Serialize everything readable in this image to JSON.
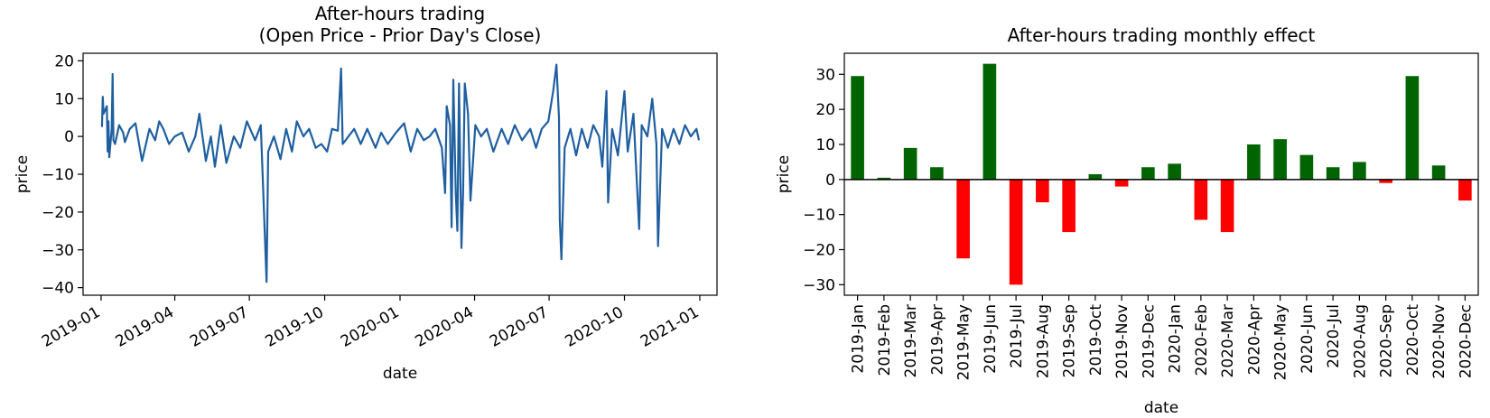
{
  "chart_data": [
    {
      "type": "line",
      "title": "After-hours trading",
      "subtitle": "(Open Price - Prior Day's Close)",
      "xlabel": "date",
      "ylabel": "price",
      "x_ticks": [
        "2019-01",
        "2019-04",
        "2019-07",
        "2019-10",
        "2020-01",
        "2020-04",
        "2020-07",
        "2020-10",
        "2021-01"
      ],
      "y_ticks": [
        20,
        10,
        0,
        -10,
        -20,
        -30,
        -40
      ],
      "xlim": [
        "2018-12-10",
        "2021-01-22"
      ],
      "ylim": [
        -42,
        22
      ],
      "line_color": "#1f5fa0",
      "series": [
        {
          "points": [
            [
              "2019-01-02",
              2.5
            ],
            [
              "2019-01-03",
              10.5
            ],
            [
              "2019-01-04",
              6
            ],
            [
              "2019-01-08",
              8
            ],
            [
              "2019-01-09",
              -4
            ],
            [
              "2019-01-10",
              4
            ],
            [
              "2019-01-11",
              -5.5
            ],
            [
              "2019-01-14",
              2
            ],
            [
              "2019-01-15",
              16.5
            ],
            [
              "2019-01-16",
              -1
            ],
            [
              "2019-01-18",
              -2
            ],
            [
              "2019-01-23",
              3
            ],
            [
              "2019-01-28",
              1
            ],
            [
              "2019-01-30",
              -1.5
            ],
            [
              "2019-02-05",
              2
            ],
            [
              "2019-02-12",
              3.5
            ],
            [
              "2019-02-20",
              -6.5
            ],
            [
              "2019-03-01",
              2
            ],
            [
              "2019-03-08",
              -1
            ],
            [
              "2019-03-13",
              4
            ],
            [
              "2019-03-18",
              2
            ],
            [
              "2019-03-25",
              -2
            ],
            [
              "2019-04-01",
              0
            ],
            [
              "2019-04-10",
              1
            ],
            [
              "2019-04-18",
              -4
            ],
            [
              "2019-04-26",
              0
            ],
            [
              "2019-05-01",
              6
            ],
            [
              "2019-05-09",
              -6.5
            ],
            [
              "2019-05-15",
              0
            ],
            [
              "2019-05-20",
              -8
            ],
            [
              "2019-05-27",
              3
            ],
            [
              "2019-06-03",
              -7
            ],
            [
              "2019-06-12",
              0
            ],
            [
              "2019-06-20",
              -3
            ],
            [
              "2019-06-28",
              4
            ],
            [
              "2019-07-08",
              -1
            ],
            [
              "2019-07-15",
              3
            ],
            [
              "2019-07-22",
              -38.5
            ],
            [
              "2019-07-24",
              -4
            ],
            [
              "2019-07-31",
              0
            ],
            [
              "2019-08-08",
              -6
            ],
            [
              "2019-08-15",
              2
            ],
            [
              "2019-08-22",
              -4
            ],
            [
              "2019-08-28",
              4
            ],
            [
              "2019-09-05",
              0
            ],
            [
              "2019-09-12",
              2
            ],
            [
              "2019-09-20",
              -3
            ],
            [
              "2019-09-27",
              -2
            ],
            [
              "2019-10-04",
              -4
            ],
            [
              "2019-10-10",
              2
            ],
            [
              "2019-10-17",
              1.5
            ],
            [
              "2019-10-21",
              18
            ],
            [
              "2019-10-23",
              -2
            ],
            [
              "2019-10-30",
              0
            ],
            [
              "2019-11-06",
              2
            ],
            [
              "2019-11-14",
              -2
            ],
            [
              "2019-11-22",
              2
            ],
            [
              "2019-12-02",
              -3
            ],
            [
              "2019-12-09",
              1
            ],
            [
              "2019-12-17",
              -2
            ],
            [
              "2019-12-27",
              1
            ],
            [
              "2020-01-06",
              3.5
            ],
            [
              "2020-01-14",
              -4
            ],
            [
              "2020-01-22",
              2
            ],
            [
              "2020-01-30",
              -1
            ],
            [
              "2020-02-06",
              0
            ],
            [
              "2020-02-13",
              2
            ],
            [
              "2020-02-21",
              -3
            ],
            [
              "2020-02-25",
              -15
            ],
            [
              "2020-02-27",
              8
            ],
            [
              "2020-03-02",
              3
            ],
            [
              "2020-03-04",
              -24
            ],
            [
              "2020-03-06",
              15
            ],
            [
              "2020-03-09",
              -15
            ],
            [
              "2020-03-11",
              -25
            ],
            [
              "2020-03-13",
              14
            ],
            [
              "2020-03-16",
              -29.5
            ],
            [
              "2020-03-18",
              -15
            ],
            [
              "2020-03-20",
              14
            ],
            [
              "2020-03-24",
              6
            ],
            [
              "2020-03-27",
              -17
            ],
            [
              "2020-04-02",
              3
            ],
            [
              "2020-04-09",
              0
            ],
            [
              "2020-04-16",
              2
            ],
            [
              "2020-04-24",
              -4
            ],
            [
              "2020-05-04",
              2
            ],
            [
              "2020-05-12",
              -2
            ],
            [
              "2020-05-20",
              3
            ],
            [
              "2020-05-29",
              -1
            ],
            [
              "2020-06-08",
              2
            ],
            [
              "2020-06-15",
              -3
            ],
            [
              "2020-06-22",
              2
            ],
            [
              "2020-06-30",
              4
            ],
            [
              "2020-07-06",
              12
            ],
            [
              "2020-07-10",
              19
            ],
            [
              "2020-07-13",
              5
            ],
            [
              "2020-07-14",
              -22
            ],
            [
              "2020-07-16",
              -32.5
            ],
            [
              "2020-07-20",
              -3
            ],
            [
              "2020-07-27",
              2
            ],
            [
              "2020-08-03",
              -5
            ],
            [
              "2020-08-10",
              2
            ],
            [
              "2020-08-17",
              -3
            ],
            [
              "2020-08-24",
              3
            ],
            [
              "2020-08-31",
              0
            ],
            [
              "2020-09-04",
              -8
            ],
            [
              "2020-09-09",
              12
            ],
            [
              "2020-09-11",
              -17.5
            ],
            [
              "2020-09-16",
              2
            ],
            [
              "2020-09-23",
              -5
            ],
            [
              "2020-10-01",
              12
            ],
            [
              "2020-10-05",
              -4
            ],
            [
              "2020-10-12",
              6
            ],
            [
              "2020-10-19",
              -24.5
            ],
            [
              "2020-10-22",
              3
            ],
            [
              "2020-10-29",
              0
            ],
            [
              "2020-11-04",
              10
            ],
            [
              "2020-11-09",
              -2
            ],
            [
              "2020-11-11",
              -29
            ],
            [
              "2020-11-16",
              2
            ],
            [
              "2020-11-23",
              -3
            ],
            [
              "2020-11-30",
              2
            ],
            [
              "2020-12-07",
              -2
            ],
            [
              "2020-12-14",
              3
            ],
            [
              "2020-12-21",
              0
            ],
            [
              "2020-12-28",
              2
            ],
            [
              "2020-12-31",
              -1
            ]
          ]
        }
      ]
    },
    {
      "type": "bar",
      "title": "After-hours trading monthly effect",
      "xlabel": "date",
      "ylabel": "price",
      "y_ticks": [
        30,
        20,
        10,
        0,
        -10,
        -20,
        -30
      ],
      "ylim": [
        -33,
        36
      ],
      "positive_color": "#006400",
      "negative_color": "#ff0000",
      "categories": [
        "2019-Jan",
        "2019-Feb",
        "2019-Mar",
        "2019-Apr",
        "2019-May",
        "2019-Jun",
        "2019-Jul",
        "2019-Aug",
        "2019-Sep",
        "2019-Oct",
        "2019-Nov",
        "2019-Dec",
        "2020-Jan",
        "2020-Feb",
        "2020-Mar",
        "2020-Apr",
        "2020-May",
        "2020-Jun",
        "2020-Jul",
        "2020-Aug",
        "2020-Sep",
        "2020-Oct",
        "2020-Nov",
        "2020-Dec"
      ],
      "values": [
        29.5,
        0.5,
        9,
        3.5,
        -22.5,
        33,
        -30,
        -6.5,
        -15,
        1.5,
        -2,
        3.5,
        4.5,
        -11.5,
        -15,
        10,
        11.5,
        7,
        3.5,
        5,
        -1,
        29.5,
        4,
        -6
      ]
    }
  ]
}
